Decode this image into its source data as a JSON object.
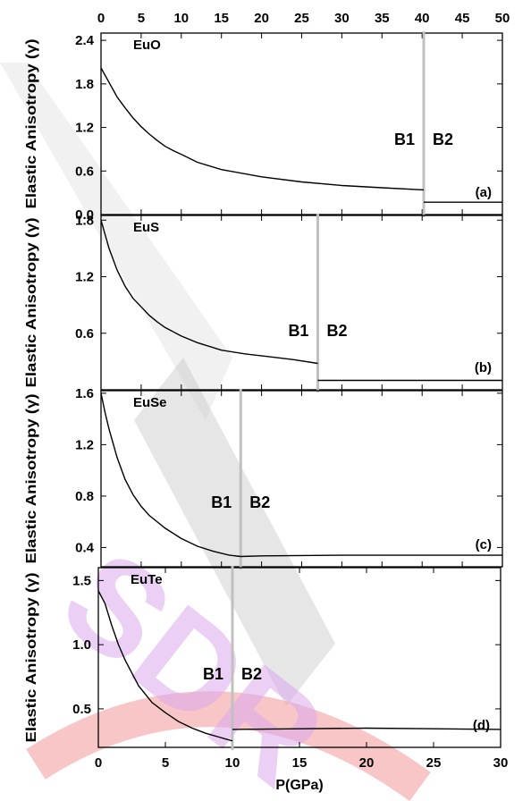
{
  "watermark": {
    "text": "SDR",
    "colors": {
      "band": "#c8c8c8",
      "letters": "#dca8ee",
      "arc": "#f4a0a0"
    }
  },
  "colors": {
    "curve": "#000000",
    "transition": "#c0c0c0",
    "frame": "#000000"
  },
  "figure": {
    "xlabel": "P(GPa)"
  },
  "chart_data": [
    {
      "type": "line",
      "panel_label": "(a)",
      "title": "EuO",
      "ylabel": "Elastic Anisotropy (γ)",
      "xlim": [
        0,
        50
      ],
      "ylim": [
        0,
        2.5
      ],
      "xticks": [
        0,
        5,
        10,
        15,
        20,
        25,
        30,
        35,
        40,
        45,
        50
      ],
      "xtick_labels_position": "top",
      "yticks": [
        0.0,
        0.6,
        1.2,
        1.8,
        2.4
      ],
      "ytick_labels": [
        "0.0",
        "0.6",
        "1.2",
        "1.8",
        "2.4"
      ],
      "transition_pressure": 40.2,
      "phase_labels": [
        "B1",
        "B2"
      ],
      "series": [
        {
          "phase": "B1",
          "x": [
            0,
            1,
            2,
            3,
            4,
            5,
            6,
            7,
            8,
            9,
            10,
            12,
            15,
            20,
            25,
            30,
            35,
            40.2
          ],
          "y": [
            2.02,
            1.82,
            1.62,
            1.47,
            1.33,
            1.21,
            1.11,
            1.02,
            0.94,
            0.88,
            0.83,
            0.72,
            0.62,
            0.52,
            0.45,
            0.4,
            0.37,
            0.34
          ]
        },
        {
          "phase": "B2",
          "x": [
            40.2,
            50
          ],
          "y": [
            0.17,
            0.17
          ]
        }
      ]
    },
    {
      "type": "line",
      "panel_label": "(b)",
      "title": "EuS",
      "ylabel": "Elastic Anisotropy (γ)",
      "xlim": [
        0,
        50
      ],
      "ylim": [
        0,
        1.85
      ],
      "yticks": [
        0.6,
        1.2,
        1.8
      ],
      "ytick_labels": [
        "0.6",
        "1.2",
        "1.8"
      ],
      "transition_pressure": 27,
      "phase_labels": [
        "B1",
        "B2"
      ],
      "series": [
        {
          "phase": "B1",
          "x": [
            0,
            1,
            2,
            3,
            4,
            5,
            6,
            7,
            8,
            10,
            12,
            15,
            18,
            21,
            24,
            27
          ],
          "y": [
            1.8,
            1.5,
            1.27,
            1.1,
            0.97,
            0.88,
            0.79,
            0.72,
            0.66,
            0.57,
            0.5,
            0.42,
            0.38,
            0.35,
            0.32,
            0.28
          ]
        },
        {
          "phase": "B2",
          "x": [
            27,
            50
          ],
          "y": [
            0.1,
            0.1
          ]
        }
      ]
    },
    {
      "type": "line",
      "panel_label": "(c)",
      "title": "EuSe",
      "ylabel": "Elastic Anisotropy (γ)",
      "xlim": [
        0,
        50
      ],
      "ylim": [
        0.25,
        1.62
      ],
      "yticks": [
        0.4,
        0.8,
        1.2,
        1.6
      ],
      "ytick_labels": [
        "0.4",
        "0.8",
        "1.2",
        "1.6"
      ],
      "transition_pressure": 17.4,
      "phase_labels": [
        "B1",
        "B2"
      ],
      "series": [
        {
          "phase": "B1",
          "x": [
            0,
            0.5,
            1,
            2,
            3,
            4,
            5,
            6,
            8,
            10,
            12,
            14,
            16,
            17.4
          ],
          "y": [
            1.6,
            1.45,
            1.32,
            1.1,
            0.93,
            0.81,
            0.72,
            0.65,
            0.55,
            0.47,
            0.41,
            0.37,
            0.34,
            0.33
          ]
        },
        {
          "phase": "B2",
          "x": [
            17.4,
            20,
            30,
            40,
            50
          ],
          "y": [
            0.33,
            0.335,
            0.34,
            0.34,
            0.34
          ]
        }
      ]
    },
    {
      "type": "line",
      "panel_label": "(d)",
      "title": "EuTe",
      "ylabel": "Elastic Anisotropy (γ)",
      "xlabel": "P(GPa)",
      "xlim": [
        0,
        30
      ],
      "ylim": [
        0.2,
        1.6
      ],
      "xticks": [
        0,
        5,
        10,
        15,
        20,
        25,
        30
      ],
      "yticks": [
        0.5,
        1.0,
        1.5
      ],
      "ytick_labels": [
        "0.5",
        "1.0",
        "1.5"
      ],
      "transition_pressure": 10,
      "phase_labels": [
        "B1",
        "B2"
      ],
      "series": [
        {
          "phase": "B1",
          "x": [
            0,
            0.5,
            1,
            1.5,
            2,
            3,
            4,
            5,
            6,
            7,
            8,
            9,
            10
          ],
          "y": [
            1.42,
            1.32,
            1.15,
            1.0,
            0.88,
            0.68,
            0.55,
            0.47,
            0.4,
            0.35,
            0.31,
            0.28,
            0.25
          ]
        },
        {
          "phase": "B2",
          "x": [
            10,
            15,
            20,
            25,
            30
          ],
          "y": [
            0.34,
            0.345,
            0.35,
            0.345,
            0.34
          ]
        }
      ]
    }
  ]
}
